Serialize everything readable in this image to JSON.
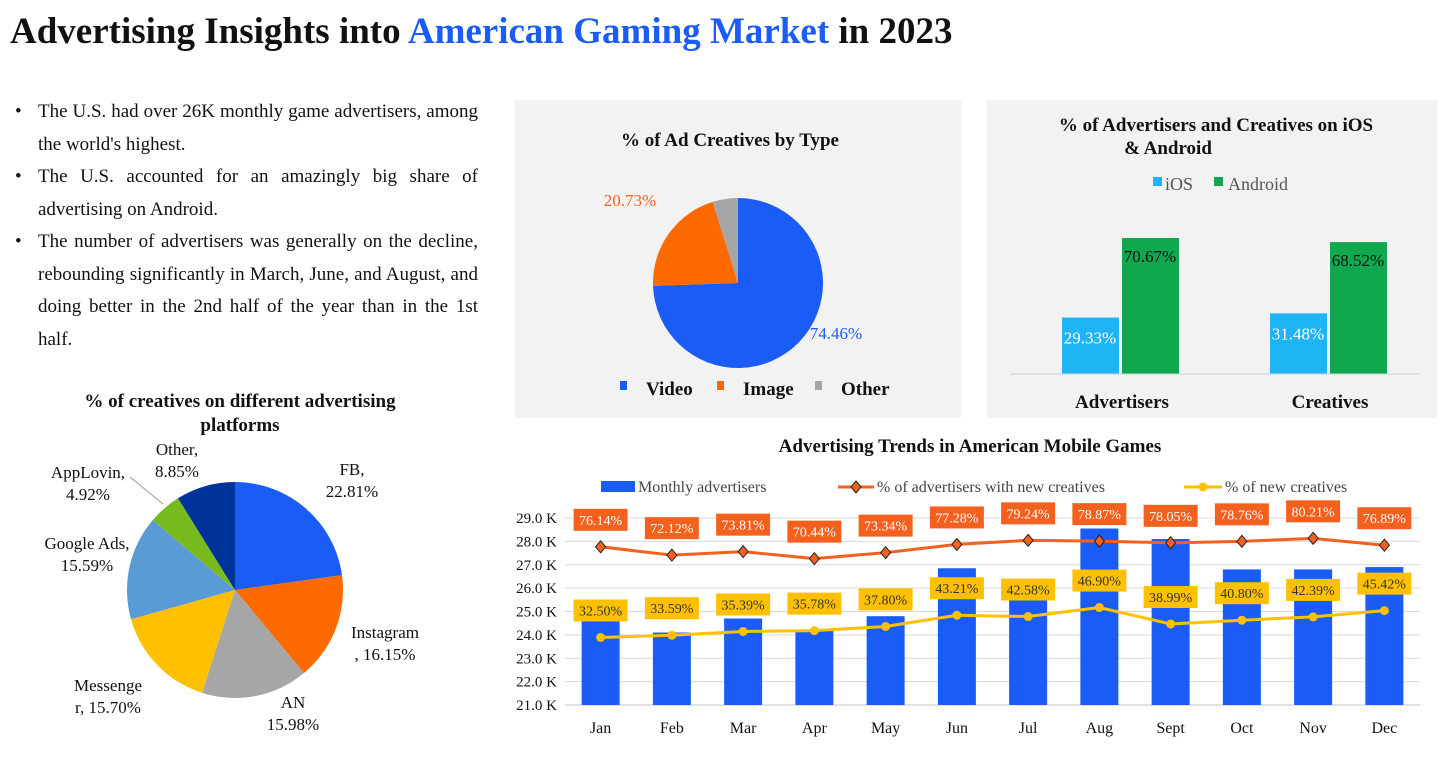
{
  "title": {
    "part1": "Advertising Insights into ",
    "highlight": "American Gaming Market",
    "part2": " in 2023"
  },
  "bullets": [
    "The U.S. had over 26K monthly game advertisers, among the world's highest.",
    "The U.S. accounted for an amazingly big share of advertising on Android.",
    "The number of advertisers was generally on the decline, rebounding significantly in March, June, and August, and doing better in the 2nd half of the year than in the 1st half."
  ],
  "colors": {
    "blue": "#1a5cf5",
    "orange": "#f4601e",
    "gray": "#a6a6a6",
    "yellow": "#ffc000",
    "cyan": "#1eb4f5",
    "green": "#0fa84f"
  },
  "chart_data": [
    {
      "type": "pie",
      "title": "% of creatives on different advertising platforms",
      "title_lines": [
        "% of creatives on different advertising",
        "platforms"
      ],
      "slices": [
        {
          "name": "FB",
          "value": 22.81,
          "label_lines": [
            "FB,",
            "22.81%"
          ],
          "color": "#1a5cf5"
        },
        {
          "name": "Instagram",
          "value": 16.15,
          "label_lines": [
            "Instagram",
            ", 16.15%"
          ],
          "color": "#ff6a00"
        },
        {
          "name": "AN",
          "value": 15.98,
          "label_lines": [
            "AN",
            "15.98%"
          ],
          "color": "#a6a6a6"
        },
        {
          "name": "Messenger",
          "value": 15.7,
          "label_lines": [
            "Messenge",
            "r, 15.70%"
          ],
          "color": "#ffc000"
        },
        {
          "name": "Google Ads",
          "value": 15.59,
          "label_lines": [
            "Google Ads,",
            "15.59%"
          ],
          "color": "#5b9bd5"
        },
        {
          "name": "AppLovin",
          "value": 4.92,
          "label_lines": [
            "AppLovin,",
            "4.92%"
          ],
          "color": "#78bb1e"
        },
        {
          "name": "Other",
          "value": 8.85,
          "label_lines": [
            "Other,",
            "8.85%"
          ],
          "color": "#003399"
        }
      ]
    },
    {
      "type": "pie",
      "title": "% of Ad Creatives by Type",
      "slices": [
        {
          "name": "Video",
          "value": 74.46,
          "label": "74.46%",
          "color": "#1a5cf5"
        },
        {
          "name": "Image",
          "value": 20.73,
          "label": "20.73%",
          "color": "#ff6a00"
        },
        {
          "name": "Other",
          "value": 4.81,
          "color": "#a6a6a6"
        }
      ],
      "legend": [
        "Video",
        "Image",
        "Other"
      ],
      "legend_position": "bottom"
    },
    {
      "type": "bar",
      "title_lines": [
        "% of Advertisers and Creatives on iOS",
        "& Android"
      ],
      "categories": [
        "Advertisers",
        "Creatives"
      ],
      "series": [
        {
          "name": "iOS",
          "values": [
            29.33,
            31.48
          ],
          "labels": [
            "29.33%",
            "31.48%"
          ],
          "color": "#1eb4f5"
        },
        {
          "name": "Android",
          "values": [
            70.67,
            68.52
          ],
          "labels": [
            "70.67%",
            "68.52%"
          ],
          "color": "#0fa84f"
        }
      ],
      "ylim": [
        0,
        100
      ],
      "legend_position": "top"
    },
    {
      "type": "bar",
      "title": "Advertising Trends in American Mobile Games",
      "categories": [
        "Jan",
        "Feb",
        "Mar",
        "Apr",
        "May",
        "Jun",
        "Jul",
        "Aug",
        "Sept",
        "Oct",
        "Nov",
        "Dec"
      ],
      "y_ticks": [
        "21.0 K",
        "22.0 K",
        "23.0 K",
        "24.0 K",
        "25.0 K",
        "26.0 K",
        "27.0 K",
        "28.0 K",
        "29.0 K"
      ],
      "ylim": [
        21,
        29
      ],
      "y2lim": [
        0,
        90
      ],
      "grid": true,
      "legend_position": "top",
      "series": [
        {
          "name": "Monthly advertisers",
          "kind": "bar",
          "values": [
            25.5,
            24.1,
            24.7,
            24.2,
            24.8,
            26.85,
            26.2,
            28.55,
            28.1,
            26.8,
            26.8,
            26.9
          ],
          "color": "#1a5cf5"
        },
        {
          "name": "% of advertisers with new creatives",
          "kind": "line",
          "values": [
            76.14,
            72.12,
            73.81,
            70.44,
            73.34,
            77.28,
            79.24,
            78.87,
            78.05,
            78.76,
            80.21,
            76.89
          ],
          "labels": [
            "76.14%",
            "72.12%",
            "73.81%",
            "70.44%",
            "73.34%",
            "77.28%",
            "79.24%",
            "78.87%",
            "78.05%",
            "78.76%",
            "80.21%",
            "76.89%"
          ],
          "color": "#f4601e"
        },
        {
          "name": "% of new creatives",
          "kind": "line",
          "values": [
            32.5,
            33.59,
            35.39,
            35.78,
            37.8,
            43.21,
            42.58,
            46.9,
            38.99,
            40.8,
            42.39,
            45.42
          ],
          "labels": [
            "32.50%",
            "33.59%",
            "35.39%",
            "35.78%",
            "37.80%",
            "43.21%",
            "42.58%",
            "46.90%",
            "38.99%",
            "40.80%",
            "42.39%",
            "45.42%"
          ],
          "color": "#ffc000"
        }
      ]
    }
  ]
}
